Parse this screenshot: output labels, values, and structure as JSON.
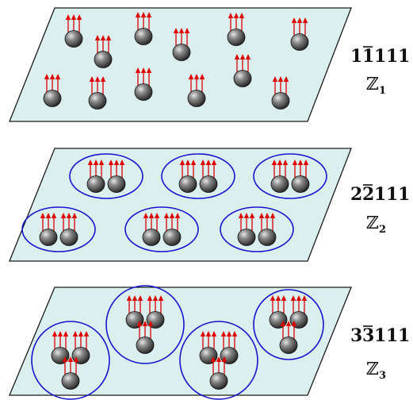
{
  "colors": {
    "plane_fill": "#dcefef",
    "cluster_stroke": "#1515d0",
    "arrow": "#e00000",
    "ball_light": "#d8d8d8",
    "ball_dark": "#1f1f1f"
  },
  "panels": [
    {
      "id": "z1",
      "code_digits": [
        "1",
        "1",
        "1",
        "1",
        "1"
      ],
      "overbar_index": 1,
      "group_letter": "ℤ",
      "group_index": "1",
      "cluster_size": 1
    },
    {
      "id": "z2",
      "code_digits": [
        "2",
        "2",
        "1",
        "1",
        "1"
      ],
      "overbar_index": 1,
      "group_letter": "ℤ",
      "group_index": "2",
      "cluster_size": 2
    },
    {
      "id": "z3",
      "code_digits": [
        "3",
        "3",
        "1",
        "1",
        "1"
      ],
      "overbar_index": 1,
      "group_letter": "ℤ",
      "group_index": "3",
      "cluster_size": 3
    }
  ]
}
